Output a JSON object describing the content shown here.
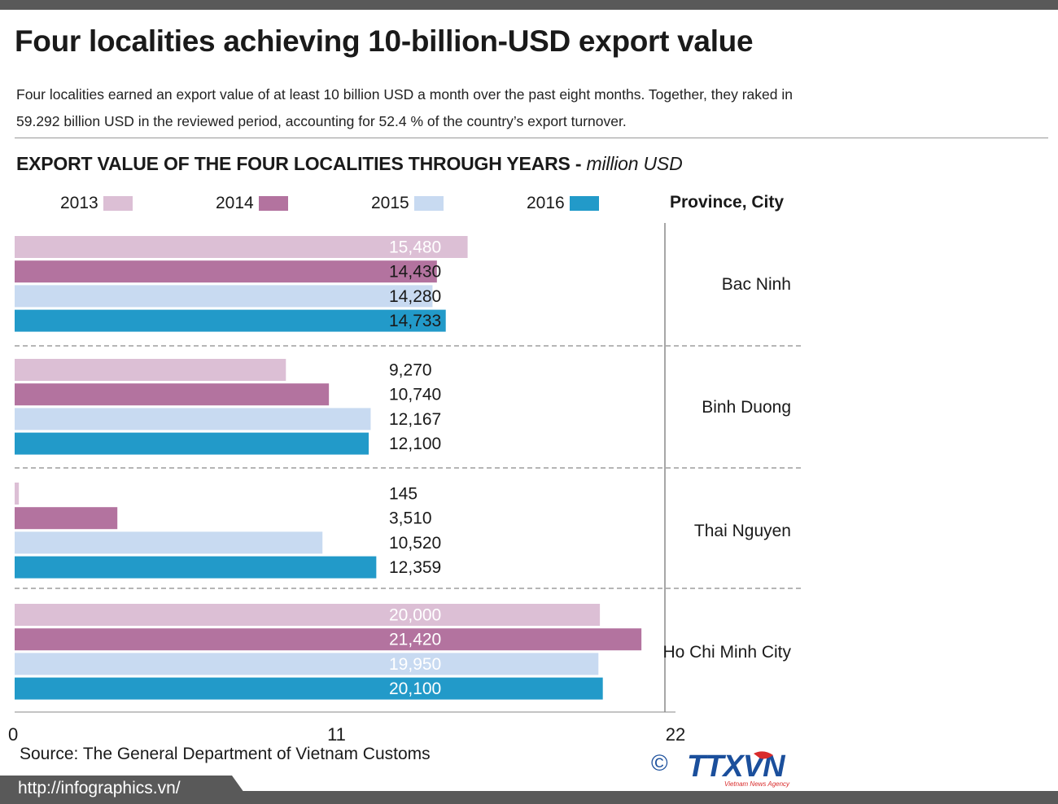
{
  "title": "Four localities achieving 10-billion-USD export value",
  "subtitle": "Four localities earned an export value of at least 10 billion USD a month over the past eight months. Together, they raked in 59.292 billion USD in the reviewed period, accounting for 52.4 % of the country’s export turnover.",
  "source": "Source: The General Department of Vietnam Customs",
  "footer_url": "http://infographics.vn/",
  "copyright": "©",
  "logo": {
    "text": "TTXVN",
    "tagline": "Vietnam News Agency"
  },
  "colors": {
    "2013": "#dcbfd5",
    "2014": "#b3739f",
    "2015": "#c8daf1",
    "2016": "#229ac9"
  },
  "chart_data": {
    "type": "bar",
    "orientation": "horizontal",
    "title": "EXPORT VALUE OF THE FOUR LOCALITIES THROUGH YEARS",
    "title_separator": "-",
    "unit": "million USD",
    "category_header": "Province, City",
    "categories": [
      "Bac Ninh",
      "Binh Duong",
      "Thai Nguyen",
      "Ho Chi Minh City"
    ],
    "series": [
      {
        "name": "2013",
        "values": [
          15480,
          9270,
          145,
          20000
        ],
        "labels": [
          "15,480",
          "9,270",
          "145",
          "20,000"
        ]
      },
      {
        "name": "2014",
        "values": [
          14430,
          10740,
          3510,
          21420
        ],
        "labels": [
          "14,430",
          "10,740",
          "3,510",
          "21,420"
        ]
      },
      {
        "name": "2015",
        "values": [
          14280,
          12167,
          10520,
          19950
        ],
        "labels": [
          "14,280",
          "12,167",
          "10,520",
          "19,950"
        ]
      },
      {
        "name": "2016",
        "values": [
          14733,
          12100,
          12359,
          20100
        ],
        "labels": [
          "14,733",
          "12,100",
          "12,359",
          "20,100"
        ]
      }
    ],
    "xlim": [
      0,
      22000
    ],
    "x_ticks": [
      0,
      11000,
      22000
    ],
    "x_tick_labels": [
      "0",
      "11",
      "22"
    ],
    "legend_position": "top",
    "grid": false
  }
}
